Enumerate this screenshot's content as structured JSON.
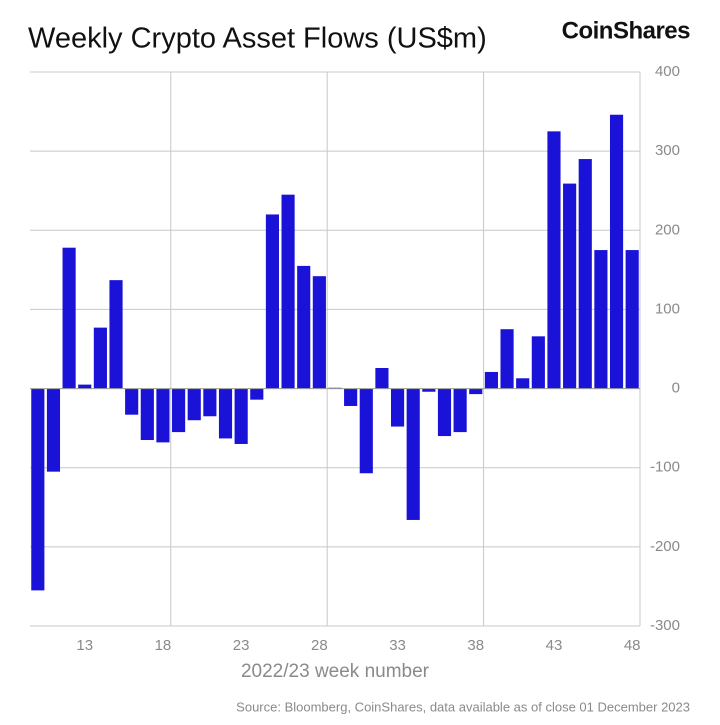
{
  "chart_data": {
    "type": "bar",
    "title": "Weekly Crypto Asset Flows (US$m)",
    "brand": "CoinShares",
    "xlabel": "2022/23 week number",
    "source": "Source: Bloomberg, CoinShares, data available as of close 01 December 2023",
    "color": "#1a12d6",
    "x": [
      10,
      11,
      12,
      13,
      14,
      15,
      16,
      17,
      18,
      19,
      20,
      21,
      22,
      23,
      24,
      25,
      26,
      27,
      28,
      29,
      30,
      31,
      32,
      33,
      34,
      35,
      36,
      37,
      38,
      39,
      40,
      41,
      42,
      43,
      44,
      45,
      46,
      47,
      48
    ],
    "values": [
      -255,
      -105,
      178,
      5,
      77,
      137,
      -33,
      -65,
      -68,
      -55,
      -40,
      -35,
      -63,
      -70,
      -14,
      220,
      245,
      155,
      142,
      1,
      -22,
      -107,
      26,
      -48,
      -166,
      -4,
      -60,
      -55,
      -7,
      21,
      75,
      13,
      66,
      325,
      259,
      290,
      175,
      346,
      175
    ],
    "xlim": [
      9.5,
      48.5
    ],
    "xticks": [
      13,
      18,
      23,
      28,
      33,
      38,
      43,
      48
    ],
    "xgrid": [
      18.5,
      28.5,
      38.5
    ],
    "ylim": [
      -300,
      400
    ],
    "yticks": [
      -300,
      -200,
      -100,
      0,
      100,
      200,
      300,
      400
    ],
    "grid": true
  }
}
